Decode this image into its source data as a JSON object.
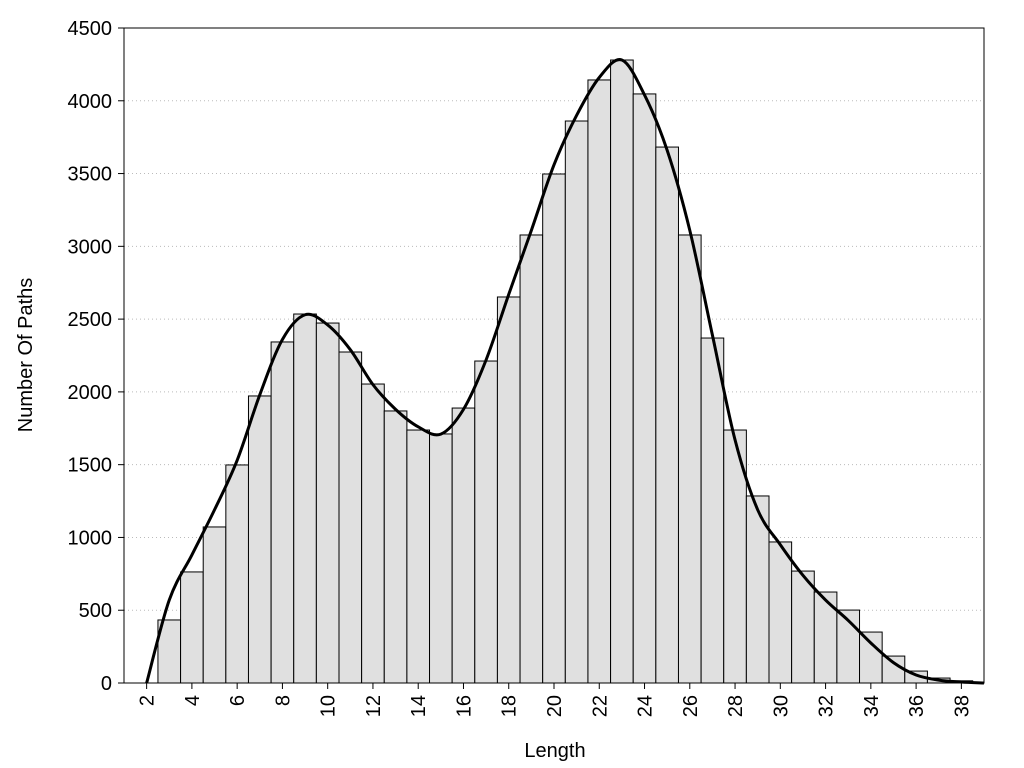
{
  "chart_data": {
    "type": "histogram",
    "x_label": "Length",
    "y_label": "Number Of Paths",
    "bins": [
      2.5,
      3.5,
      4.5,
      5.5,
      6.5,
      7.5,
      8.5,
      9.5,
      10.5,
      11.5,
      12.5,
      13.5,
      14.5,
      15.5,
      16.5,
      17.5,
      18.5,
      19.5,
      20.5,
      21.5,
      22.5,
      23.5,
      24.5,
      25.5,
      26.5,
      27.5,
      28.5,
      29.5,
      30.5,
      31.5,
      32.5,
      33.5,
      34.5,
      35.5,
      36.5,
      37.5,
      38.5
    ],
    "values": [
      433,
      763,
      1072,
      1498,
      1972,
      2343,
      2535,
      2473,
      2274,
      2054,
      1869,
      1738,
      1711,
      1889,
      2212,
      2652,
      3078,
      3497,
      3861,
      4143,
      4280,
      4047,
      3682,
      3078,
      2370,
      1738,
      1285,
      969,
      769,
      625,
      501,
      350,
      185,
      82,
      34,
      15
    ],
    "color": "#e0e0e0",
    "curve": {
      "x": [
        2,
        3,
        4,
        5,
        6,
        7,
        8,
        9,
        10,
        11,
        12,
        13,
        14,
        15,
        16,
        17,
        18,
        19,
        20,
        21,
        22,
        23,
        24,
        25,
        26,
        27,
        28,
        29,
        30,
        31,
        32,
        33,
        34,
        35,
        36,
        37,
        38,
        39
      ],
      "values": [
        0,
        570,
        880,
        1190,
        1530,
        1980,
        2360,
        2530,
        2460,
        2290,
        2050,
        1880,
        1760,
        1710,
        1880,
        2220,
        2670,
        3110,
        3560,
        3900,
        4160,
        4280,
        4040,
        3660,
        3110,
        2390,
        1670,
        1190,
        950,
        740,
        570,
        430,
        275,
        140,
        55,
        20,
        7,
        0
      ],
      "color": "#000000"
    },
    "xlim": [
      1,
      39
    ],
    "ylim": [
      0,
      4500
    ],
    "xticks": [
      2,
      4,
      6,
      8,
      10,
      12,
      14,
      16,
      18,
      20,
      22,
      24,
      26,
      28,
      30,
      32,
      34,
      36,
      38
    ],
    "yticks": [
      0,
      500,
      1000,
      1500,
      2000,
      2500,
      3000,
      3500,
      4000,
      4500
    ],
    "grid": true
  }
}
